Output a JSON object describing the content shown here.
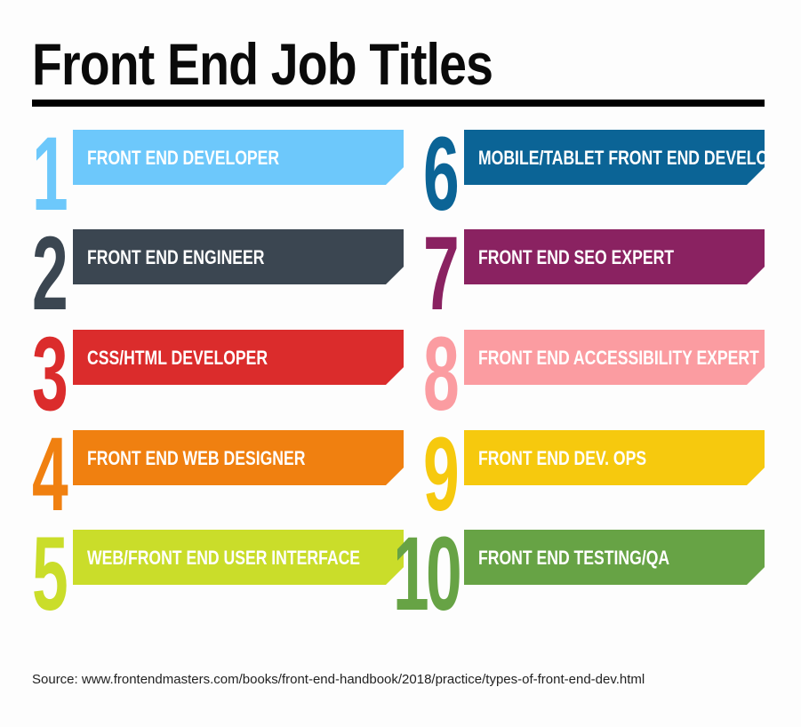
{
  "title": "Front End Job Titles",
  "items": [
    {
      "number": "1",
      "label": "FRONT END DEVELOPER",
      "color": "#6dc8fb"
    },
    {
      "number": "2",
      "label": "FRONT END ENGINEER",
      "color": "#3b4651"
    },
    {
      "number": "3",
      "label": "CSS/HTML DEVELOPER",
      "color": "#db2c2c"
    },
    {
      "number": "4",
      "label": "FRONT END WEB DESIGNER",
      "color": "#f08010"
    },
    {
      "number": "5",
      "label": "WEB/FRONT END USER INTERFACE",
      "color": "#cadd2a"
    },
    {
      "number": "6",
      "label": "MOBILE/TABLET FRONT END DEVELOPER",
      "color": "#0b6496"
    },
    {
      "number": "7",
      "label": "FRONT END SEO EXPERT",
      "color": "#8a2261"
    },
    {
      "number": "8",
      "label": "FRONT END ACCESSIBILITY EXPERT",
      "color": "#fb9ca1"
    },
    {
      "number": "9",
      "label": "FRONT END DEV. OPS",
      "color": "#f6c90e"
    },
    {
      "number": "10",
      "label": "FRONT END TESTING/QA",
      "color": "#67a345"
    }
  ],
  "source": "Source: www.frontendmasters.com/books/front-end-handbook/2018/practice/types-of-front-end-dev.html"
}
